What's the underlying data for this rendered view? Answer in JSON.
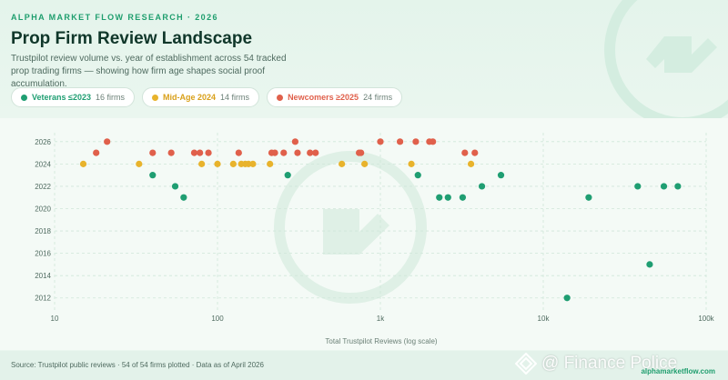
{
  "header": {
    "eyebrow": "ALPHA MARKET FLOW RESEARCH · 2026",
    "title": "Prop Firm Review Landscape",
    "subtitle": "Trustpilot review volume vs. year of establishment across 54 tracked prop trading firms — showing how firm age shapes social proof accumulation."
  },
  "legend": [
    {
      "label": "Veterans ≤2023",
      "count": "16 firms",
      "color": "#1f9e72"
    },
    {
      "label": "Mid-Age 2024",
      "count": "14 firms",
      "color": "#e8b32c"
    },
    {
      "label": "Newcomers ≥2025",
      "count": "24 firms",
      "color": "#e0604b"
    }
  ],
  "chart_data": {
    "type": "scatter",
    "x_scale": "log",
    "xlabel": "Total Trustpilot Reviews (log scale)",
    "ylabel": "",
    "xlim": [
      10,
      100000
    ],
    "ylim": [
      2011,
      2026.8
    ],
    "x_ticks": [
      "10",
      "100",
      "1k",
      "10k",
      "100k"
    ],
    "x_tick_values": [
      10,
      100,
      1000,
      10000,
      100000
    ],
    "y_ticks": [
      2012,
      2014,
      2016,
      2018,
      2020,
      2022,
      2024,
      2026
    ],
    "grid": true,
    "series": [
      {
        "name": "Veterans ≤2023",
        "color": "#1f9e72",
        "points": [
          [
            40,
            2023
          ],
          [
            55,
            2022
          ],
          [
            62,
            2021
          ],
          [
            270,
            2023
          ],
          [
            1700,
            2023
          ],
          [
            2300,
            2021
          ],
          [
            2600,
            2021
          ],
          [
            3200,
            2021
          ],
          [
            4200,
            2022
          ],
          [
            5500,
            2023
          ],
          [
            14000,
            2012
          ],
          [
            19000,
            2021
          ],
          [
            45000,
            2015
          ],
          [
            55000,
            2022
          ],
          [
            67000,
            2022
          ],
          [
            38000,
            2022
          ]
        ]
      },
      {
        "name": "Mid-Age 2024",
        "color": "#e8b32c",
        "points": [
          [
            15,
            2024
          ],
          [
            33,
            2024
          ],
          [
            80,
            2024
          ],
          [
            100,
            2024
          ],
          [
            125,
            2024
          ],
          [
            140,
            2024
          ],
          [
            155,
            2024
          ],
          [
            165,
            2024
          ],
          [
            210,
            2024
          ],
          [
            580,
            2024
          ],
          [
            800,
            2024
          ],
          [
            1550,
            2024
          ],
          [
            3600,
            2024
          ],
          [
            148,
            2024
          ]
        ]
      },
      {
        "name": "Newcomers ≥2025",
        "color": "#e0604b",
        "points": [
          [
            18,
            2025
          ],
          [
            21,
            2026
          ],
          [
            40,
            2025
          ],
          [
            52,
            2025
          ],
          [
            72,
            2025
          ],
          [
            78,
            2025
          ],
          [
            88,
            2025
          ],
          [
            135,
            2025
          ],
          [
            215,
            2025
          ],
          [
            225,
            2025
          ],
          [
            255,
            2025
          ],
          [
            300,
            2026
          ],
          [
            310,
            2025
          ],
          [
            400,
            2025
          ],
          [
            740,
            2025
          ],
          [
            760,
            2025
          ],
          [
            1000,
            2026
          ],
          [
            1320,
            2026
          ],
          [
            1650,
            2026
          ],
          [
            2100,
            2026
          ],
          [
            3300,
            2025
          ],
          [
            3800,
            2025
          ],
          [
            2000,
            2026
          ],
          [
            370,
            2025
          ]
        ]
      }
    ]
  },
  "footer": {
    "source": "Source: Trustpilot public reviews · 54 of 54 firms plotted · Data as of April 2026",
    "site": "alphamarketflow.com",
    "overlay": "@ Finance Police"
  }
}
